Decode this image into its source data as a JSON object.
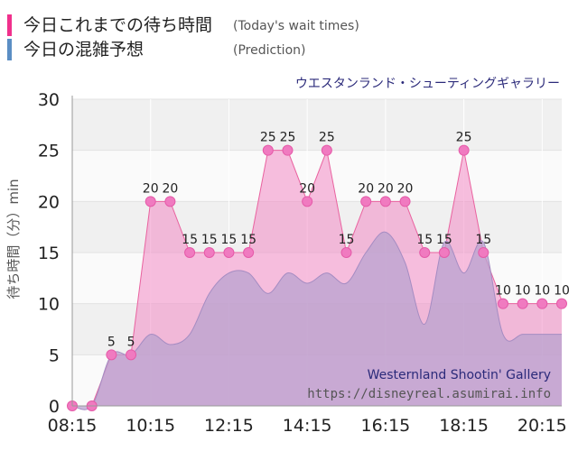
{
  "legend": {
    "actual_label": "今日これまでの待ち時間",
    "actual_desc": "(Today's wait times)",
    "actual_color": "#f0308c",
    "prediction_label": "今日の混雑予想",
    "prediction_desc": "(Prediction)",
    "prediction_color": "#5b8ec4"
  },
  "chart_data": {
    "type": "area",
    "title": "ウエスタンランド・シューティングギャラリー",
    "ylabel": "待ち時間（分）min",
    "ylim": [
      0,
      30
    ],
    "yticks": [
      0,
      5,
      10,
      15,
      20,
      25,
      30
    ],
    "x_range": [
      "08:15",
      "20:45"
    ],
    "xticks": [
      "08:15",
      "10:15",
      "12:15",
      "14:15",
      "16:15",
      "18:15",
      "20:15"
    ],
    "series": [
      {
        "name": "今日これまでの待ち時間",
        "color": "#f28ac5",
        "x": [
          "08:15",
          "08:45",
          "09:15",
          "09:45",
          "10:15",
          "10:45",
          "11:15",
          "11:45",
          "12:15",
          "12:45",
          "13:15",
          "13:45",
          "14:15",
          "14:45",
          "15:15",
          "15:45",
          "16:15",
          "16:45",
          "17:15",
          "17:45",
          "18:15",
          "18:45",
          "19:15",
          "19:45",
          "20:15",
          "20:45"
        ],
        "values": [
          0,
          0,
          5,
          5,
          20,
          20,
          15,
          15,
          15,
          15,
          25,
          25,
          20,
          25,
          15,
          20,
          20,
          20,
          15,
          15,
          25,
          15,
          10,
          10,
          10,
          10
        ],
        "data_labels": [
          "",
          "",
          "5",
          "5",
          "20",
          "20",
          "15",
          "15",
          "15",
          "15",
          "25",
          "25",
          "20",
          "25",
          "15",
          "20",
          "20",
          "20",
          "15",
          "15",
          "25",
          "15",
          "10",
          "10",
          "10",
          "10"
        ]
      },
      {
        "name": "今日の混雑予想",
        "color": "#b8a3cf",
        "x": [
          "08:15",
          "08:45",
          "09:15",
          "09:45",
          "10:15",
          "10:45",
          "11:15",
          "11:45",
          "12:15",
          "12:45",
          "13:15",
          "13:45",
          "14:15",
          "14:45",
          "15:15",
          "15:45",
          "16:15",
          "16:45",
          "17:15",
          "17:45",
          "18:15",
          "18:45",
          "19:15",
          "19:45",
          "20:15",
          "20:45"
        ],
        "values": [
          0,
          0,
          5,
          5,
          7,
          6,
          7,
          11,
          13,
          13,
          11,
          13,
          12,
          13,
          12,
          15,
          17,
          14,
          8,
          16,
          13,
          16,
          7,
          7,
          7,
          7
        ]
      }
    ],
    "grid": true,
    "watermark_title": "Westernland Shootin' Gallery",
    "watermark_url": "https://disneyreal.asumirai.info"
  }
}
